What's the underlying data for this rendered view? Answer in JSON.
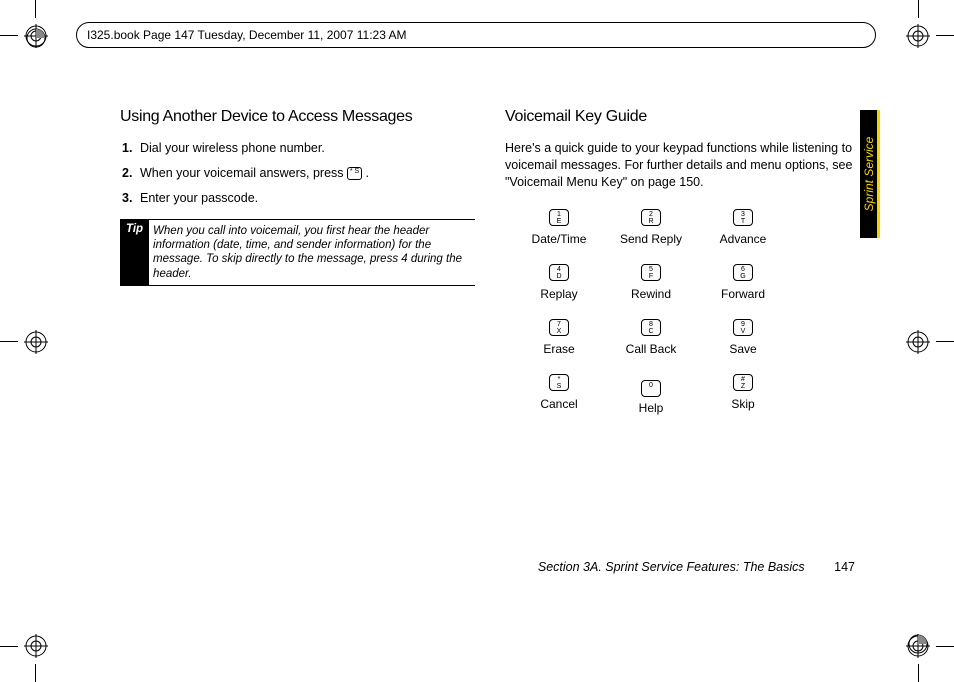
{
  "header": {
    "text": "I325.book  Page 147  Tuesday, December 11, 2007  11:23 AM"
  },
  "left": {
    "heading": "Using Another Device to Access Messages",
    "steps": [
      {
        "n": "1.",
        "text": "Dial your wireless phone number."
      },
      {
        "n": "2.",
        "text_before": "When your voicemail answers, press ",
        "key": "*\nS",
        "text_after": "."
      },
      {
        "n": "3.",
        "text": "Enter your passcode."
      }
    ],
    "tip_label": "Tip",
    "tip_text": "When you call into voicemail, you first hear the header information (date, time, and sender information) for the message. To skip directly to the message, press 4 during the header."
  },
  "right": {
    "heading": "Voicemail Key Guide",
    "intro": "Here's a quick guide to your keypad functions while listening to voicemail messages. For further details and menu options, see \"Voicemail Menu Key\" on page 150.",
    "keys": [
      {
        "icon": "1\nE",
        "label": "Date/Time"
      },
      {
        "icon": "2\nR",
        "label": "Send Reply"
      },
      {
        "icon": "3\nT",
        "label": "Advance"
      },
      {
        "icon": "4\nD",
        "label": "Replay"
      },
      {
        "icon": "5\nF",
        "label": "Rewind"
      },
      {
        "icon": "6\nG",
        "label": "Forward"
      },
      {
        "icon": "7\nX",
        "label": "Erase"
      },
      {
        "icon": "8\nC",
        "label": "Call Back"
      },
      {
        "icon": "9\nV",
        "label": "Save"
      },
      {
        "icon": "*\nS",
        "label": "Cancel"
      },
      {
        "icon": "0\n",
        "label": "Help"
      },
      {
        "icon": "#\nZ",
        "label": "Skip"
      }
    ]
  },
  "sidetab": "Sprint Service",
  "footer": {
    "section": "Section 3A. Sprint Service Features: The Basics",
    "page": "147"
  },
  "marks": {
    "reg_color": "#000000"
  }
}
